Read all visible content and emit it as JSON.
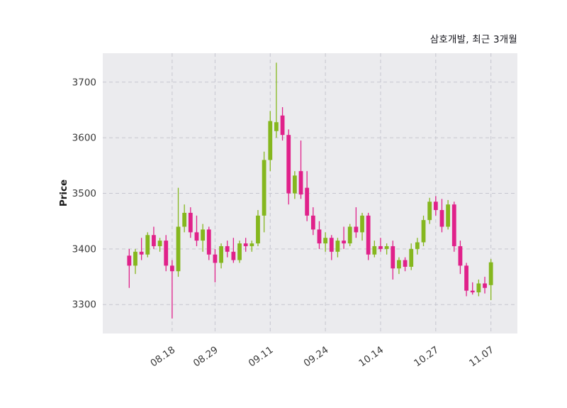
{
  "title": "삼호개발, 최근 3개월",
  "colors": {
    "up": "#85b71e",
    "down": "#e0218a",
    "plot_bg": "#ebebee",
    "grid": "#c6c6cf",
    "tick_text": "#3a3a3a",
    "title_text": "#16161d",
    "figure_bg": "#ffffff"
  },
  "chart_data": {
    "type": "candlestick",
    "title": "삼호개발, 최근 3개월",
    "xlabel": "",
    "ylabel": "Price",
    "grid": "dashed",
    "legend": "none",
    "y_ticks": [
      3300,
      3400,
      3500,
      3600,
      3700
    ],
    "ylim": [
      3248,
      3752
    ],
    "x_tick_labels": [
      "08.18",
      "08.29",
      "09.11",
      "09.24",
      "10.14",
      "10.27",
      "11.07"
    ],
    "x_tick_indices": [
      7,
      14,
      23,
      32,
      41,
      50,
      59
    ],
    "candle_format": [
      "open",
      "high",
      "low",
      "close"
    ],
    "candles": [
      [
        3388,
        3400,
        3330,
        3370
      ],
      [
        3370,
        3400,
        3355,
        3395
      ],
      [
        3395,
        3420,
        3380,
        3390
      ],
      [
        3390,
        3430,
        3385,
        3425
      ],
      [
        3425,
        3440,
        3400,
        3405
      ],
      [
        3405,
        3420,
        3395,
        3415
      ],
      [
        3415,
        3425,
        3360,
        3370
      ],
      [
        3370,
        3380,
        3275,
        3360
      ],
      [
        3360,
        3510,
        3350,
        3440
      ],
      [
        3440,
        3480,
        3430,
        3465
      ],
      [
        3465,
        3475,
        3420,
        3430
      ],
      [
        3430,
        3460,
        3405,
        3415
      ],
      [
        3415,
        3445,
        3395,
        3435
      ],
      [
        3435,
        3440,
        3380,
        3390
      ],
      [
        3390,
        3400,
        3340,
        3375
      ],
      [
        3375,
        3410,
        3365,
        3405
      ],
      [
        3405,
        3415,
        3385,
        3395
      ],
      [
        3395,
        3420,
        3375,
        3380
      ],
      [
        3380,
        3415,
        3375,
        3410
      ],
      [
        3410,
        3420,
        3395,
        3405
      ],
      [
        3405,
        3415,
        3395,
        3410
      ],
      [
        3410,
        3470,
        3405,
        3460
      ],
      [
        3460,
        3575,
        3430,
        3560
      ],
      [
        3560,
        3648,
        3540,
        3630
      ],
      [
        3612,
        3735,
        3600,
        3628
      ],
      [
        3640,
        3655,
        3595,
        3605
      ],
      [
        3605,
        3615,
        3480,
        3500
      ],
      [
        3500,
        3540,
        3490,
        3532
      ],
      [
        3540,
        3595,
        3490,
        3498
      ],
      [
        3510,
        3540,
        3450,
        3460
      ],
      [
        3460,
        3475,
        3425,
        3435
      ],
      [
        3435,
        3450,
        3400,
        3410
      ],
      [
        3410,
        3430,
        3395,
        3420
      ],
      [
        3420,
        3425,
        3380,
        3395
      ],
      [
        3395,
        3420,
        3385,
        3415
      ],
      [
        3415,
        3440,
        3400,
        3410
      ],
      [
        3410,
        3445,
        3405,
        3440
      ],
      [
        3440,
        3475,
        3420,
        3430
      ],
      [
        3430,
        3465,
        3415,
        3460
      ],
      [
        3460,
        3465,
        3380,
        3390
      ],
      [
        3390,
        3415,
        3385,
        3405
      ],
      [
        3405,
        3420,
        3395,
        3400
      ],
      [
        3400,
        3410,
        3390,
        3405
      ],
      [
        3405,
        3415,
        3345,
        3365
      ],
      [
        3365,
        3385,
        3355,
        3380
      ],
      [
        3380,
        3385,
        3360,
        3368
      ],
      [
        3368,
        3410,
        3362,
        3400
      ],
      [
        3400,
        3420,
        3390,
        3412
      ],
      [
        3412,
        3460,
        3405,
        3452
      ],
      [
        3452,
        3492,
        3445,
        3485
      ],
      [
        3485,
        3495,
        3460,
        3470
      ],
      [
        3470,
        3490,
        3430,
        3440
      ],
      [
        3440,
        3488,
        3435,
        3480
      ],
      [
        3480,
        3485,
        3395,
        3405
      ],
      [
        3405,
        3415,
        3355,
        3370
      ],
      [
        3370,
        3375,
        3315,
        3325
      ],
      [
        3325,
        3340,
        3318,
        3322
      ],
      [
        3322,
        3345,
        3315,
        3338
      ],
      [
        3338,
        3350,
        3320,
        3330
      ],
      [
        3335,
        3382,
        3308,
        3376
      ]
    ]
  }
}
